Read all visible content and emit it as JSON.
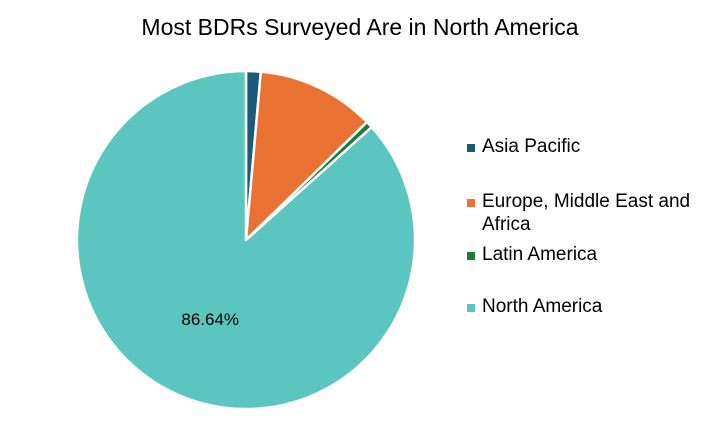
{
  "chart_data": {
    "type": "pie",
    "title": "Most BDRs Surveyed Are in North America",
    "categories": [
      "Asia Pacific",
      "Europe, Middle East and Africa",
      "Latin America",
      "North America"
    ],
    "values": [
      1.4,
      11.3,
      0.66,
      86.64
    ],
    "colors": [
      "#1c5a7a",
      "#e97132",
      "#1f7a3a",
      "#5bc6bf"
    ],
    "data_labels": [
      "",
      "",
      "",
      "86.64%"
    ],
    "legend_position": "right",
    "start_angle_deg": 0,
    "direction": "clockwise"
  }
}
